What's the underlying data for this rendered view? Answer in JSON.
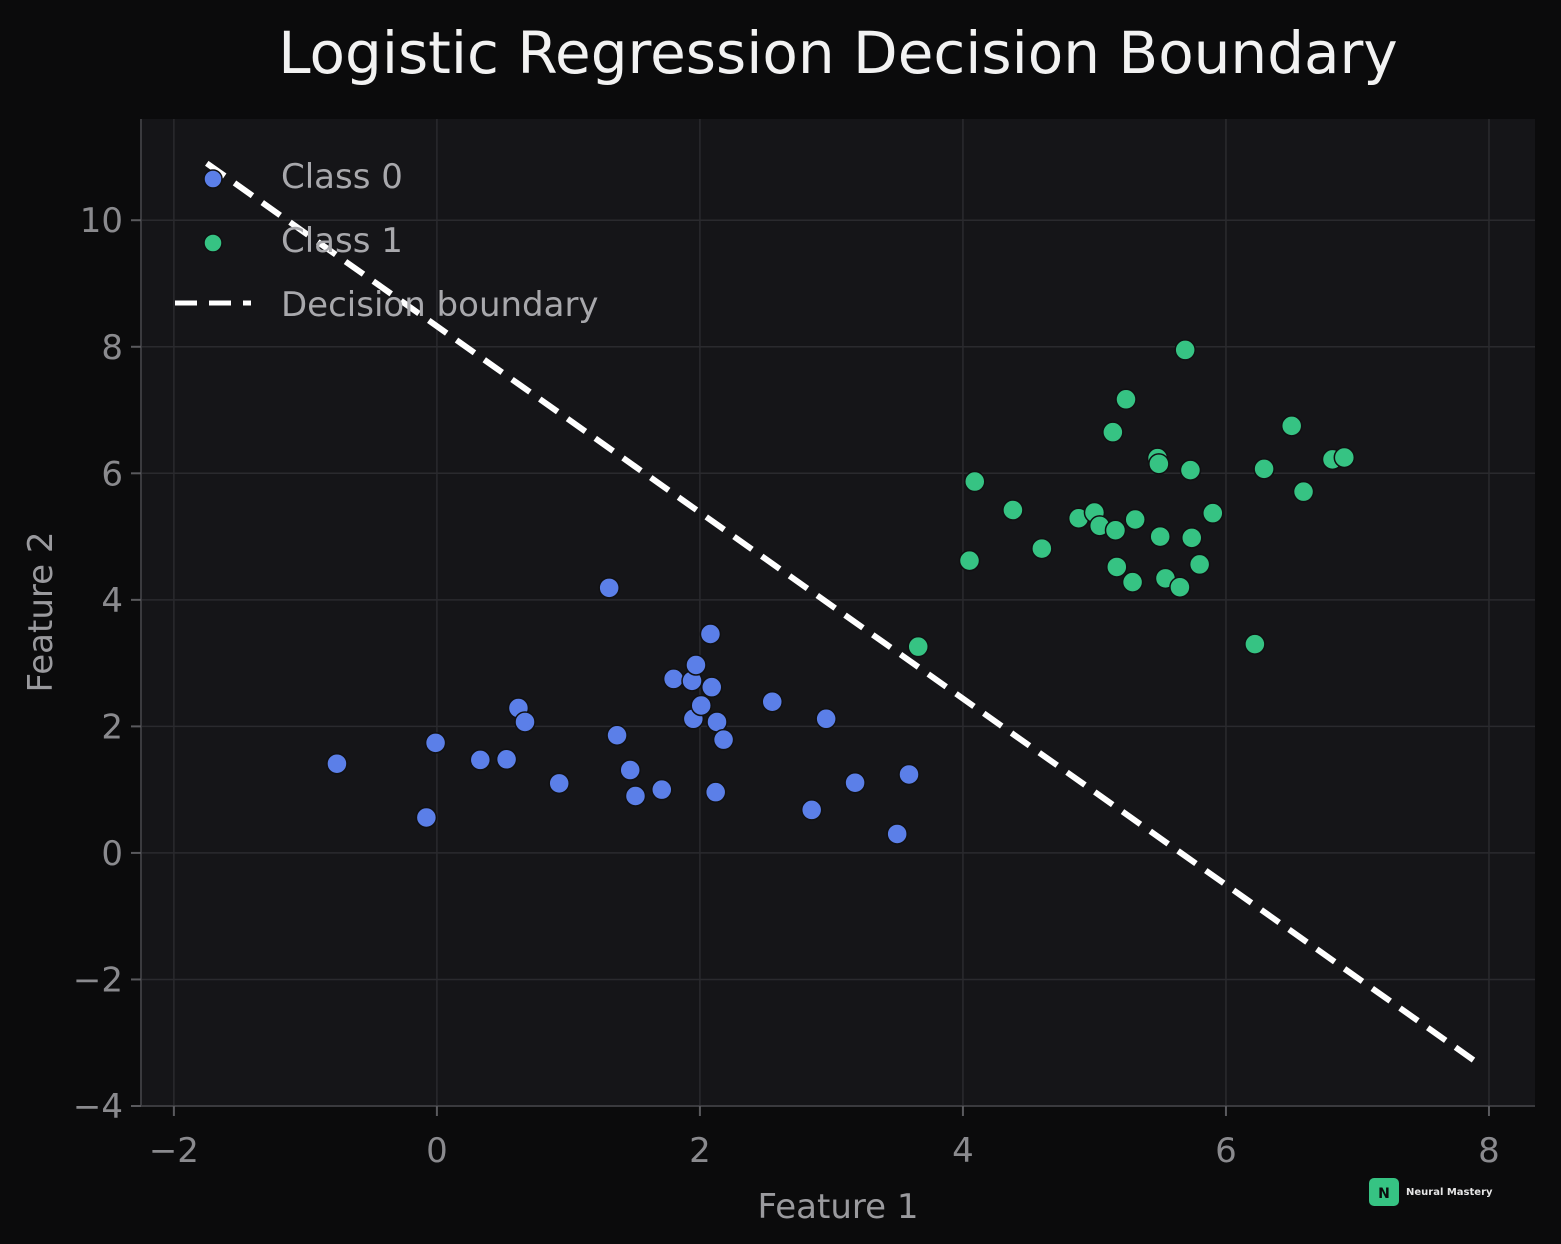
{
  "chart_data": {
    "type": "scatter",
    "title": "Logistic Regression Decision Boundary",
    "xlabel": "Feature 1",
    "ylabel": "Feature 2",
    "xlim": [
      -2.25,
      8.35
    ],
    "ylim": [
      -4.0,
      11.6
    ],
    "xticks": [
      -2,
      0,
      2,
      4,
      6,
      8
    ],
    "yticks": [
      -4,
      -2,
      0,
      2,
      4,
      6,
      8,
      10
    ],
    "xtick_labels": [
      "−2",
      "0",
      "2",
      "4",
      "6",
      "8"
    ],
    "ytick_labels": [
      "−4",
      "−2",
      "0",
      "2",
      "4",
      "6",
      "8",
      "10"
    ],
    "grid": true,
    "legend_position": "top-left",
    "series": [
      {
        "name": "Class 0",
        "color": "#5b7fe8",
        "points": [
          [
            -0.76,
            1.41
          ],
          [
            -0.08,
            0.56
          ],
          [
            -0.01,
            1.74
          ],
          [
            0.33,
            1.47
          ],
          [
            0.53,
            1.48
          ],
          [
            0.62,
            2.29
          ],
          [
            0.67,
            2.07
          ],
          [
            0.93,
            1.1
          ],
          [
            1.31,
            4.19
          ],
          [
            1.37,
            1.86
          ],
          [
            1.47,
            1.31
          ],
          [
            1.51,
            0.9
          ],
          [
            1.71,
            1.0
          ],
          [
            1.8,
            2.75
          ],
          [
            1.94,
            2.72
          ],
          [
            1.97,
            2.97
          ],
          [
            1.95,
            2.12
          ],
          [
            2.01,
            2.33
          ],
          [
            2.08,
            3.46
          ],
          [
            2.09,
            2.62
          ],
          [
            2.13,
            2.07
          ],
          [
            2.12,
            0.96
          ],
          [
            2.18,
            1.79
          ],
          [
            2.55,
            2.39
          ],
          [
            2.85,
            0.68
          ],
          [
            2.96,
            2.12
          ],
          [
            3.18,
            1.11
          ],
          [
            3.5,
            0.3
          ],
          [
            3.59,
            1.24
          ]
        ]
      },
      {
        "name": "Class 1",
        "color": "#36c383",
        "points": [
          [
            3.66,
            3.26
          ],
          [
            4.05,
            4.62
          ],
          [
            4.09,
            5.87
          ],
          [
            4.38,
            5.42
          ],
          [
            4.6,
            4.81
          ],
          [
            4.88,
            5.29
          ],
          [
            5.0,
            5.38
          ],
          [
            5.04,
            5.17
          ],
          [
            5.14,
            6.65
          ],
          [
            5.16,
            5.1
          ],
          [
            5.17,
            4.52
          ],
          [
            5.24,
            7.17
          ],
          [
            5.29,
            4.28
          ],
          [
            5.31,
            5.27
          ],
          [
            5.48,
            6.24
          ],
          [
            5.49,
            6.15
          ],
          [
            5.5,
            5.0
          ],
          [
            5.54,
            4.34
          ],
          [
            5.65,
            4.2
          ],
          [
            5.69,
            7.95
          ],
          [
            5.73,
            6.05
          ],
          [
            5.74,
            4.98
          ],
          [
            5.8,
            4.56
          ],
          [
            5.9,
            5.37
          ],
          [
            6.22,
            3.3
          ],
          [
            6.29,
            6.07
          ],
          [
            6.5,
            6.75
          ],
          [
            6.59,
            5.71
          ],
          [
            6.81,
            6.22
          ],
          [
            6.9,
            6.25
          ]
        ]
      }
    ],
    "decision_boundary": {
      "name": "Decision boundary",
      "color": "#ffffff",
      "style": "dashed",
      "points": [
        [
          -1.75,
          10.9
        ],
        [
          7.9,
          -3.3
        ]
      ]
    }
  },
  "watermark": {
    "letter": "N",
    "text": "Neural Mastery",
    "color": "#36c383"
  }
}
